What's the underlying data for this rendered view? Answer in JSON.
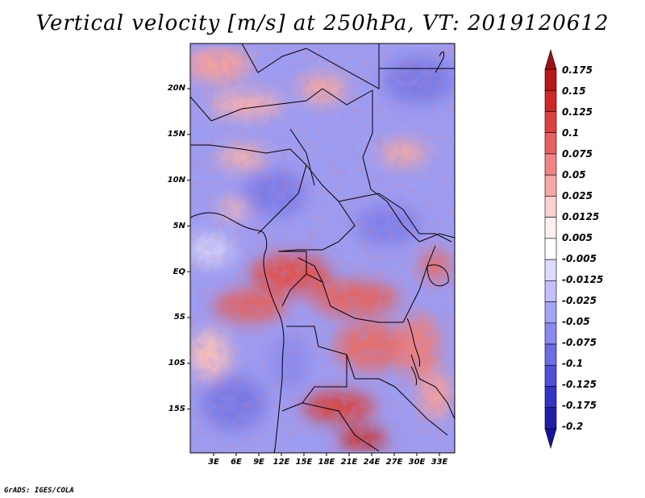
{
  "title": "Vertical velocity [m/s] at 250hPa, VT: 2019120612",
  "credit": "GrADS: IGES/COLA",
  "map": {
    "lat_ticks": [
      "20N",
      "15N",
      "10N",
      "5N",
      "EQ",
      "5S",
      "10S",
      "15S"
    ],
    "lon_ticks": [
      "3E",
      "6E",
      "9E",
      "12E",
      "15E",
      "18E",
      "21E",
      "24E",
      "27E",
      "30E",
      "33E"
    ]
  },
  "colorbar": {
    "labels": [
      "0.175",
      "0.15",
      "0.125",
      "0.1",
      "0.075",
      "0.05",
      "0.025",
      "0.0125",
      "0.005",
      "-0.005",
      "-0.0125",
      "-0.025",
      "-0.05",
      "-0.075",
      "-0.1",
      "-0.125",
      "-0.175",
      "-0.2"
    ],
    "colors": [
      "#a01010",
      "#b81818",
      "#cc2828",
      "#dc4040",
      "#e86060",
      "#f08484",
      "#f8a8a8",
      "#fcd0d0",
      "#fff0f0",
      "#ffffff",
      "#dcdcff",
      "#c0c0fc",
      "#a4a4f6",
      "#8888ee",
      "#6c6ce4",
      "#5050d8",
      "#3434c4",
      "#2020a8",
      "#1414a0"
    ]
  }
}
